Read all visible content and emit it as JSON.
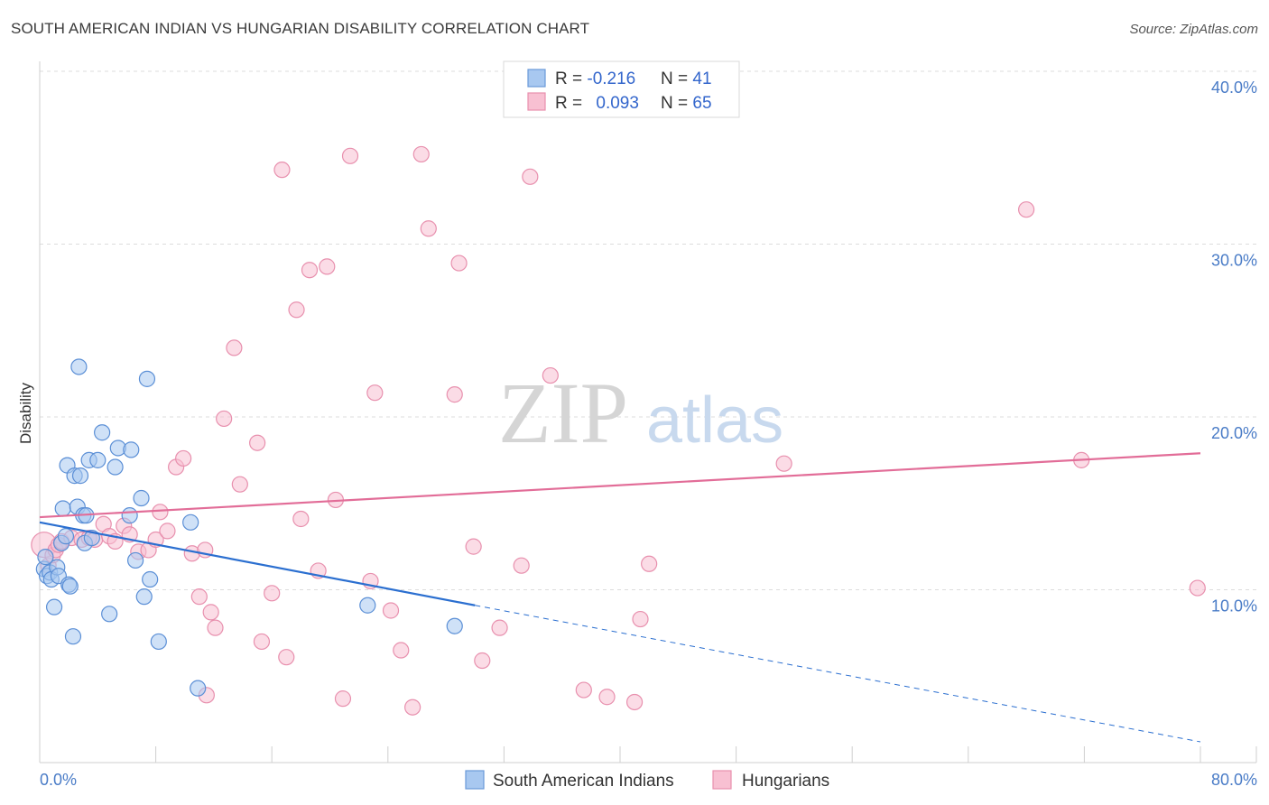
{
  "title": "SOUTH AMERICAN INDIAN VS HUNGARIAN DISABILITY CORRELATION CHART",
  "source": "Source: ZipAtlas.com",
  "watermark": {
    "zip": "ZIP",
    "atlas": "atlas"
  },
  "legend_box": {
    "rows": [
      {
        "r_label": "R = ",
        "r_value": "-0.216",
        "n_label": "N = ",
        "n_value": "41",
        "color": "#a8c8f0",
        "stroke": "#6a9ad8"
      },
      {
        "r_label": "R = ",
        "r_value": "0.093",
        "n_label": "N = ",
        "n_value": "65",
        "color": "#f8c0d2",
        "stroke": "#e890ae"
      }
    ]
  },
  "chart_data": {
    "type": "scatter",
    "xlabel": "",
    "ylabel": "Disability",
    "xlim": [
      0,
      80
    ],
    "ylim": [
      0,
      40
    ],
    "x_tick_labels": [
      "0.0%",
      "80.0%"
    ],
    "y_ticks": [
      10,
      20,
      30,
      40
    ],
    "y_tick_labels": [
      "10.0%",
      "20.0%",
      "30.0%",
      "40.0%"
    ],
    "grid": true,
    "legend_position": "bottom",
    "series": [
      {
        "name": "South American Indians",
        "color": "#a8c8f0",
        "stroke": "#5b8fd6",
        "line_color": "#2b6fd0",
        "trend": {
          "x0": 0,
          "y0": 13.9,
          "x1": 30,
          "y1": 9.1,
          "dash_to_x": 80,
          "dash_to_y": 1.2
        },
        "points": [
          [
            0.3,
            11.2
          ],
          [
            0.5,
            10.8
          ],
          [
            0.7,
            11.0
          ],
          [
            0.8,
            10.6
          ],
          [
            1.0,
            9.0
          ],
          [
            1.2,
            11.3
          ],
          [
            1.3,
            10.8
          ],
          [
            1.5,
            12.7
          ],
          [
            1.6,
            14.7
          ],
          [
            1.8,
            13.1
          ],
          [
            1.9,
            17.2
          ],
          [
            2.0,
            10.3
          ],
          [
            2.1,
            10.2
          ],
          [
            2.4,
            16.6
          ],
          [
            2.6,
            14.8
          ],
          [
            2.7,
            22.9
          ],
          [
            2.8,
            16.6
          ],
          [
            3.0,
            14.3
          ],
          [
            3.1,
            12.7
          ],
          [
            3.2,
            14.3
          ],
          [
            3.4,
            17.5
          ],
          [
            3.6,
            13.0
          ],
          [
            4.0,
            17.5
          ],
          [
            4.3,
            19.1
          ],
          [
            4.8,
            8.6
          ],
          [
            5.2,
            17.1
          ],
          [
            5.4,
            18.2
          ],
          [
            6.2,
            14.3
          ],
          [
            6.3,
            18.1
          ],
          [
            6.6,
            11.7
          ],
          [
            7.0,
            15.3
          ],
          [
            7.2,
            9.6
          ],
          [
            7.4,
            22.2
          ],
          [
            7.6,
            10.6
          ],
          [
            8.2,
            7.0
          ],
          [
            2.3,
            7.3
          ],
          [
            10.4,
            13.9
          ],
          [
            10.9,
            4.3
          ],
          [
            22.6,
            9.1
          ],
          [
            28.6,
            7.9
          ],
          [
            0.4,
            11.9
          ]
        ]
      },
      {
        "name": "Hungarians",
        "color": "#f8c0d2",
        "stroke": "#e890ae",
        "line_color": "#e26d98",
        "trend": {
          "x0": 0,
          "y0": 14.2,
          "x1": 80,
          "y1": 17.9
        },
        "points": [
          [
            0.3,
            12.6
          ],
          [
            0.6,
            11.4
          ],
          [
            0.9,
            12.0
          ],
          [
            1.1,
            12.3
          ],
          [
            1.3,
            12.6
          ],
          [
            1.5,
            12.8
          ],
          [
            2.2,
            13.0
          ],
          [
            2.9,
            12.9
          ],
          [
            3.4,
            13.0
          ],
          [
            3.8,
            12.9
          ],
          [
            4.4,
            13.8
          ],
          [
            4.8,
            13.1
          ],
          [
            5.2,
            12.8
          ],
          [
            5.8,
            13.7
          ],
          [
            6.2,
            13.2
          ],
          [
            6.8,
            12.2
          ],
          [
            7.5,
            12.3
          ],
          [
            8.0,
            12.9
          ],
          [
            8.3,
            14.5
          ],
          [
            8.8,
            13.4
          ],
          [
            9.4,
            17.1
          ],
          [
            9.9,
            17.6
          ],
          [
            10.5,
            12.1
          ],
          [
            11.0,
            9.6
          ],
          [
            11.4,
            12.3
          ],
          [
            11.8,
            8.7
          ],
          [
            12.1,
            7.8
          ],
          [
            12.7,
            19.9
          ],
          [
            13.4,
            24.0
          ],
          [
            13.8,
            16.1
          ],
          [
            15.0,
            18.5
          ],
          [
            15.3,
            7.0
          ],
          [
            16.0,
            9.8
          ],
          [
            17.0,
            6.1
          ],
          [
            17.7,
            26.2
          ],
          [
            18.0,
            14.1
          ],
          [
            18.6,
            28.5
          ],
          [
            19.2,
            11.1
          ],
          [
            19.8,
            28.7
          ],
          [
            20.4,
            15.2
          ],
          [
            20.9,
            3.7
          ],
          [
            21.4,
            35.1
          ],
          [
            22.8,
            10.5
          ],
          [
            23.1,
            21.4
          ],
          [
            24.2,
            8.8
          ],
          [
            24.9,
            6.5
          ],
          [
            25.7,
            3.2
          ],
          [
            26.3,
            35.2
          ],
          [
            26.8,
            30.9
          ],
          [
            28.6,
            21.3
          ],
          [
            28.9,
            28.9
          ],
          [
            29.9,
            12.5
          ],
          [
            30.5,
            5.9
          ],
          [
            31.7,
            7.8
          ],
          [
            33.2,
            11.4
          ],
          [
            33.8,
            33.9
          ],
          [
            35.2,
            22.4
          ],
          [
            37.5,
            4.2
          ],
          [
            39.1,
            3.8
          ],
          [
            41.0,
            3.5
          ],
          [
            41.4,
            8.3
          ],
          [
            42.0,
            11.5
          ],
          [
            51.3,
            17.3
          ],
          [
            68.0,
            32.0
          ],
          [
            71.8,
            17.5
          ]
        ]
      }
    ]
  },
  "extra_points": {
    "hungarian_far": [
      [
        79.8,
        10.1
      ],
      [
        11.5,
        3.9
      ],
      [
        16.7,
        34.3
      ]
    ]
  }
}
